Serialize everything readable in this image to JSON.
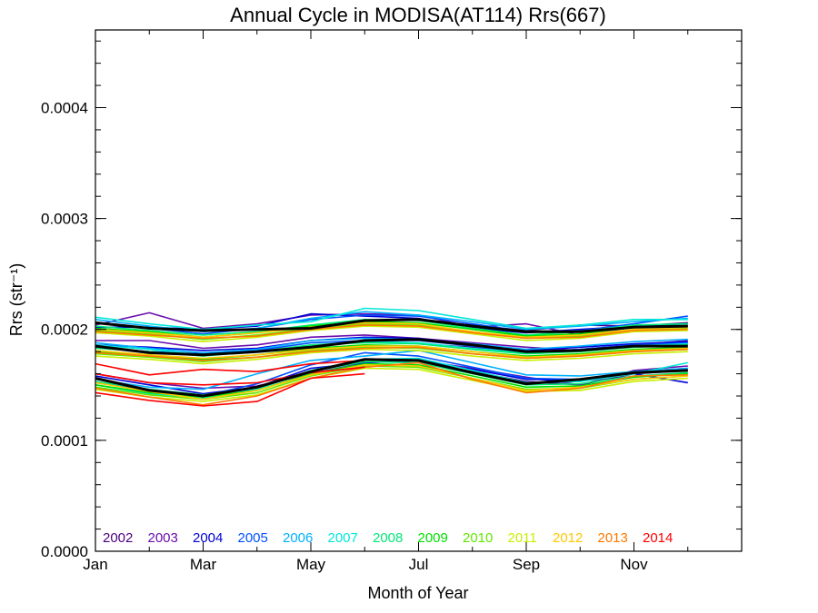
{
  "chart_data": {
    "type": "line",
    "title": "Annual Cycle in MODISA(AT114) Rrs(667)",
    "xlabel": "Month of Year",
    "ylabel": "Rrs (str⁻¹)",
    "x_tick_labels": [
      "Jan",
      "Mar",
      "May",
      "Jul",
      "Sep",
      "Nov"
    ],
    "x_tick_values": [
      1,
      3,
      5,
      7,
      9,
      11
    ],
    "xlim": [
      1,
      13
    ],
    "y_tick_labels": [
      "0.0000",
      "0.0001",
      "0.0002",
      "0.0003",
      "0.0004"
    ],
    "y_tick_values": [
      0.0,
      0.0001,
      0.0002,
      0.0003,
      0.0004
    ],
    "ylim": [
      0.0,
      0.00047
    ],
    "grid": false,
    "legend_placement": "bottom-left",
    "months": [
      1,
      2,
      3,
      4,
      5,
      6,
      7,
      8,
      9,
      10,
      11,
      12
    ],
    "years": [
      {
        "label": "2002",
        "color": "#4b0082"
      },
      {
        "label": "2003",
        "color": "#6a0dad"
      },
      {
        "label": "2004",
        "color": "#0000d8"
      },
      {
        "label": "2005",
        "color": "#0050ff"
      },
      {
        "label": "2006",
        "color": "#00b0ff"
      },
      {
        "label": "2007",
        "color": "#00e8d8"
      },
      {
        "label": "2008",
        "color": "#00e878"
      },
      {
        "label": "2009",
        "color": "#00e000"
      },
      {
        "label": "2010",
        "color": "#60e800"
      },
      {
        "label": "2011",
        "color": "#c8f000"
      },
      {
        "label": "2012",
        "color": "#ffc800"
      },
      {
        "label": "2013",
        "color": "#ff7800"
      },
      {
        "label": "2014",
        "color": "#ff0000"
      }
    ],
    "series": [
      {
        "year": "2002",
        "group": "p90",
        "values": [
          null,
          null,
          null,
          null,
          null,
          null,
          0.000208,
          0.000204,
          0.000199,
          0.000204,
          0.000203,
          0.000206
        ]
      },
      {
        "year": "2002",
        "group": "median",
        "values": [
          null,
          null,
          null,
          null,
          null,
          null,
          0.000187,
          0.000184,
          0.00018,
          0.000182,
          0.000186,
          0.000187
        ]
      },
      {
        "year": "2002",
        "group": "p10",
        "values": [
          null,
          null,
          null,
          null,
          null,
          null,
          0.00017,
          0.000162,
          0.000153,
          0.00015,
          0.00016,
          0.000163
        ]
      },
      {
        "year": "2003",
        "group": "p90",
        "values": [
          0.000204,
          0.000215,
          0.000201,
          0.000205,
          0.000213,
          0.000214,
          0.000213,
          0.000202,
          0.000205,
          0.000195,
          0.000202,
          0.000203
        ]
      },
      {
        "year": "2003",
        "group": "median",
        "values": [
          0.00019,
          0.00019,
          0.000183,
          0.000186,
          0.000193,
          0.000195,
          0.000192,
          0.000188,
          0.000184,
          0.000181,
          0.000186,
          0.00019
        ]
      },
      {
        "year": "2003",
        "group": "p10",
        "values": [
          0.00016,
          0.000152,
          0.000147,
          0.000149,
          0.00016,
          0.00017,
          0.000172,
          0.000165,
          0.000157,
          0.00015,
          0.000163,
          0.000167
        ]
      },
      {
        "year": "2004",
        "group": "p90",
        "values": [
          0.000202,
          0.000202,
          0.0002,
          0.000203,
          0.000214,
          0.000212,
          0.00021,
          0.000201,
          0.000197,
          0.0002,
          0.000203,
          0.000205
        ]
      },
      {
        "year": "2004",
        "group": "median",
        "values": [
          0.000186,
          0.000184,
          0.000181,
          0.000183,
          0.00019,
          0.000193,
          0.000192,
          0.000186,
          0.000181,
          0.000184,
          0.000187,
          0.000189
        ]
      },
      {
        "year": "2004",
        "group": "p10",
        "values": [
          0.000158,
          0.00015,
          0.000142,
          0.000148,
          0.000165,
          0.00017,
          0.000172,
          0.000164,
          0.000155,
          0.000154,
          0.00016,
          0.000152
        ]
      },
      {
        "year": "2005",
        "group": "p90",
        "values": [
          0.000206,
          0.000201,
          0.000196,
          0.000201,
          0.000209,
          0.000213,
          0.000212,
          0.000205,
          0.000198,
          0.000199,
          0.000205,
          0.000212
        ]
      },
      {
        "year": "2005",
        "group": "median",
        "values": [
          0.000184,
          0.00018,
          0.000178,
          0.000181,
          0.000188,
          0.00019,
          0.00019,
          0.000185,
          0.000179,
          0.000182,
          0.000186,
          0.000188
        ]
      },
      {
        "year": "2005",
        "group": "p10",
        "values": [
          0.000152,
          0.000145,
          0.00014,
          0.000151,
          0.000168,
          0.000179,
          0.000176,
          0.000166,
          0.000156,
          0.000155,
          0.000162,
          0.000165
        ]
      },
      {
        "year": "2006",
        "group": "p90",
        "values": [
          0.000209,
          0.000203,
          0.000198,
          0.000201,
          0.00021,
          0.000216,
          0.000213,
          0.000207,
          0.0002,
          0.000203,
          0.000207,
          0.00021
        ]
      },
      {
        "year": "2006",
        "group": "median",
        "values": [
          0.000188,
          0.000183,
          0.000179,
          0.000182,
          0.00019,
          0.000192,
          0.000191,
          0.000187,
          0.000182,
          0.000185,
          0.000189,
          0.000191
        ]
      },
      {
        "year": "2006",
        "group": "p10",
        "values": [
          0.000155,
          0.000148,
          0.000146,
          0.00016,
          0.000172,
          0.000176,
          0.000181,
          0.00017,
          0.000159,
          0.000158,
          0.000162,
          0.000165
        ]
      },
      {
        "year": "2007",
        "group": "p90",
        "values": [
          0.000211,
          0.000205,
          0.0002,
          0.000204,
          0.000207,
          0.000219,
          0.000217,
          0.000209,
          0.000201,
          0.000204,
          0.000209,
          0.000209
        ]
      },
      {
        "year": "2007",
        "group": "median",
        "values": [
          0.000186,
          0.000182,
          0.000177,
          0.00018,
          0.000186,
          0.000189,
          0.000188,
          0.000183,
          0.000179,
          0.000181,
          0.000185,
          0.000187
        ]
      },
      {
        "year": "2007",
        "group": "p10",
        "values": [
          0.00015,
          0.000142,
          0.000138,
          0.000146,
          0.000163,
          0.000173,
          0.000174,
          0.000163,
          0.000152,
          0.000153,
          0.00016,
          0.00017
        ]
      },
      {
        "year": "2008",
        "group": "p90",
        "values": [
          0.000203,
          0.000199,
          0.000195,
          0.000198,
          0.000204,
          0.000209,
          0.000208,
          0.000201,
          0.000195,
          0.000198,
          0.000204,
          0.000205
        ]
      },
      {
        "year": "2008",
        "group": "median",
        "values": [
          0.000183,
          0.00018,
          0.000176,
          0.00018,
          0.000186,
          0.000188,
          0.000187,
          0.000182,
          0.000178,
          0.00018,
          0.000184,
          0.000186
        ]
      },
      {
        "year": "2008",
        "group": "p10",
        "values": [
          0.000153,
          0.000146,
          0.000141,
          0.000147,
          0.000162,
          0.000171,
          0.00017,
          0.00016,
          0.00015,
          0.000151,
          0.000158,
          0.000161
        ]
      },
      {
        "year": "2009",
        "group": "p90",
        "values": [
          0.000201,
          0.000198,
          0.000193,
          0.000197,
          0.000203,
          0.000207,
          0.000206,
          0.0002,
          0.000194,
          0.000196,
          0.000202,
          0.000203
        ]
      },
      {
        "year": "2009",
        "group": "median",
        "values": [
          0.00018,
          0.000177,
          0.000173,
          0.000177,
          0.000183,
          0.000186,
          0.000185,
          0.00018,
          0.000176,
          0.000178,
          0.000182,
          0.000184
        ]
      },
      {
        "year": "2009",
        "group": "p10",
        "values": [
          0.00015,
          0.000143,
          0.000139,
          0.000145,
          0.00016,
          0.000169,
          0.000168,
          0.000158,
          0.000148,
          0.000149,
          0.000157,
          0.00016
        ]
      },
      {
        "year": "2010",
        "group": "p90",
        "values": [
          0.000199,
          0.000196,
          0.000191,
          0.000195,
          0.000201,
          0.000205,
          0.000204,
          0.000198,
          0.000192,
          0.000194,
          0.0002,
          0.000201
        ]
      },
      {
        "year": "2010",
        "group": "median",
        "values": [
          0.000178,
          0.000175,
          0.000171,
          0.000175,
          0.000181,
          0.000184,
          0.000183,
          0.000178,
          0.000174,
          0.000176,
          0.00018,
          0.000182
        ]
      },
      {
        "year": "2010",
        "group": "p10",
        "values": [
          0.000148,
          0.000141,
          0.000137,
          0.000143,
          0.000158,
          0.000167,
          0.000166,
          0.000156,
          0.000146,
          0.000147,
          0.000155,
          0.000158
        ]
      },
      {
        "year": "2011",
        "group": "p90",
        "values": [
          0.000197,
          0.000194,
          0.000189,
          0.000193,
          0.000199,
          0.000203,
          0.000202,
          0.000196,
          0.00019,
          0.000192,
          0.000198,
          0.000199
        ]
      },
      {
        "year": "2011",
        "group": "median",
        "values": [
          0.000176,
          0.000173,
          0.000169,
          0.000173,
          0.000179,
          0.000182,
          0.000181,
          0.000176,
          0.000172,
          0.000174,
          0.000178,
          0.00018
        ]
      },
      {
        "year": "2011",
        "group": "p10",
        "values": [
          0.000146,
          0.000139,
          0.000135,
          0.000141,
          0.000156,
          0.000165,
          0.000164,
          0.000154,
          0.000144,
          0.000145,
          0.000153,
          0.000156
        ]
      },
      {
        "year": "2012",
        "group": "p90",
        "values": [
          0.0002,
          0.000197,
          0.000193,
          0.000197,
          0.000202,
          0.000206,
          0.000205,
          0.000198,
          0.000193,
          0.000195,
          0.0002,
          0.000202
        ]
      },
      {
        "year": "2012",
        "group": "median",
        "values": [
          0.000181,
          0.000177,
          0.000174,
          0.000177,
          0.000182,
          0.000185,
          0.000185,
          0.00018,
          0.000175,
          0.000177,
          0.000181,
          0.000183
        ]
      },
      {
        "year": "2012",
        "group": "p10",
        "values": [
          0.000152,
          0.000144,
          0.000137,
          0.000145,
          0.000159,
          0.000168,
          0.000167,
          0.000156,
          0.000145,
          0.000148,
          0.000155,
          0.000158
        ]
      },
      {
        "year": "2013",
        "group": "p90",
        "values": [
          0.000198,
          0.000195,
          0.000192,
          0.000194,
          0.0002,
          0.000204,
          0.000203,
          0.000197,
          0.000192,
          0.000193,
          0.000199,
          0.0002
        ]
      },
      {
        "year": "2013",
        "group": "median",
        "values": [
          0.000179,
          0.000176,
          0.000172,
          0.000175,
          0.00018,
          0.000183,
          0.000184,
          0.000178,
          0.000174,
          0.000176,
          0.00018,
          0.000182
        ]
      },
      {
        "year": "2013",
        "group": "p10",
        "values": [
          0.000147,
          0.000139,
          0.000132,
          0.00014,
          0.000156,
          0.000166,
          0.00017,
          0.000155,
          0.000143,
          0.000147,
          0.000158,
          0.000159
        ]
      },
      {
        "year": "2014",
        "group": "p90",
        "values": [
          0.000169,
          0.000159,
          0.000164,
          0.000162,
          0.000169,
          0.000172,
          null,
          null,
          null,
          null,
          null,
          null
        ]
      },
      {
        "year": "2014",
        "group": "median",
        "values": [
          0.00016,
          0.000152,
          0.00015,
          0.000152,
          0.000161,
          0.000166,
          null,
          null,
          null,
          null,
          null,
          null
        ]
      },
      {
        "year": "2014",
        "group": "p10",
        "values": [
          0.000143,
          0.000136,
          0.000131,
          0.000135,
          0.000156,
          0.00016,
          null,
          null,
          null,
          null,
          null,
          null
        ]
      },
      {
        "year": "climatology",
        "group": "p90",
        "values": [
          0.000206,
          0.000201,
          0.000199,
          0.0002,
          0.000201,
          0.000208,
          0.000209,
          0.000203,
          0.000198,
          0.000198,
          0.000202,
          0.000203
        ]
      },
      {
        "year": "climatology",
        "group": "median",
        "values": [
          0.000185,
          0.000179,
          0.000177,
          0.00018,
          0.000184,
          0.00019,
          0.000191,
          0.000186,
          0.00018,
          0.000181,
          0.000185,
          0.000185
        ]
      },
      {
        "year": "climatology",
        "group": "p10",
        "values": [
          0.000156,
          0.000145,
          0.00014,
          0.000148,
          0.000162,
          0.000173,
          0.000172,
          0.000161,
          0.000151,
          0.000155,
          0.000161,
          0.000163
        ]
      }
    ]
  }
}
